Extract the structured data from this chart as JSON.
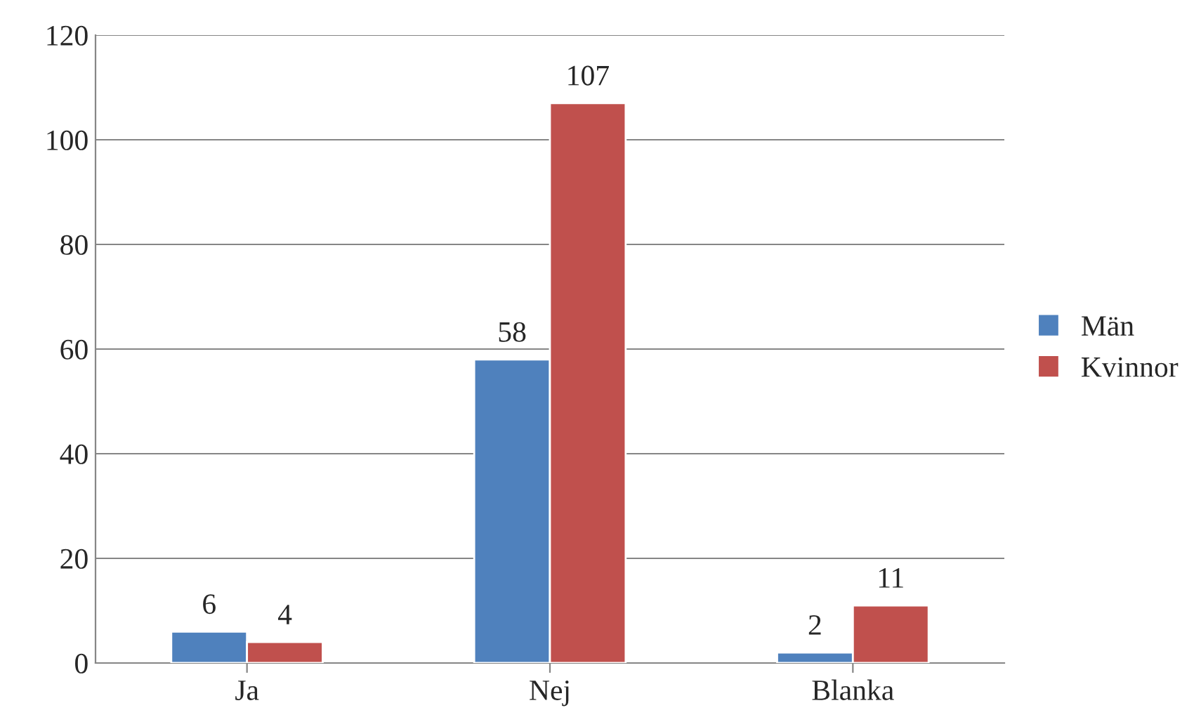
{
  "chart_data": {
    "type": "bar",
    "categories": [
      "Ja",
      "Nej",
      "Blanka"
    ],
    "series": [
      {
        "name": "Män",
        "color": "#4f81bd",
        "values": [
          6,
          58,
          2
        ]
      },
      {
        "name": "Kvinnor",
        "color": "#c0504d",
        "values": [
          4,
          107,
          11
        ]
      }
    ],
    "ylim": [
      0,
      120
    ],
    "yticks": [
      0,
      20,
      40,
      60,
      80,
      100,
      120
    ],
    "grid": "y",
    "legend": "right",
    "data_labels": true
  }
}
